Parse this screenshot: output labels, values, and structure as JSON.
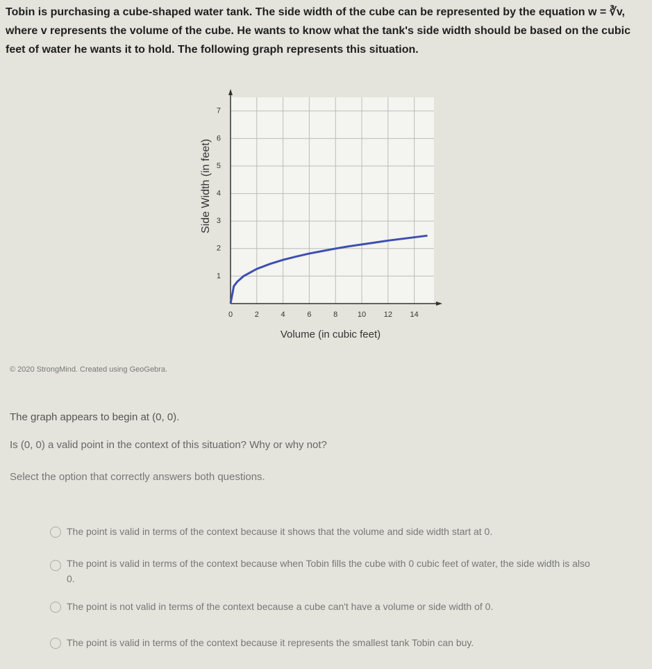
{
  "question": "Tobin is purchasing a cube-shaped water tank. The side width of the cube can be represented by the equation w = ∛v, where v represents the volume of the cube. He wants to know what the tank's side width should be based on the cubic feet of water he wants it to hold. The following graph represents this situation.",
  "chart_data": {
    "type": "line",
    "x_label": "Volume (in cubic feet)",
    "y_label": "Side Width (in feet)",
    "x": [
      0,
      0.25,
      0.5,
      1,
      2,
      3,
      4,
      5,
      6,
      7,
      8,
      9,
      10,
      11,
      12,
      13,
      14,
      15
    ],
    "values": [
      0,
      0.63,
      0.79,
      1,
      1.26,
      1.44,
      1.59,
      1.71,
      1.82,
      1.91,
      2,
      2.08,
      2.15,
      2.22,
      2.29,
      2.35,
      2.41,
      2.47
    ],
    "color": "#3d4fb0",
    "xlim": [
      0,
      15.5
    ],
    "ylim": [
      0,
      7.5
    ],
    "xticks": [
      0,
      2,
      4,
      6,
      8,
      10,
      12,
      14
    ],
    "yticks": [
      1,
      2,
      3,
      4,
      5,
      6,
      7
    ],
    "grid": true
  },
  "credit": "© 2020 StrongMind. Created using GeoGebra.",
  "statement": "The graph appears to begin at (0, 0).",
  "prompt": "Is (0, 0) a valid point in the context of this situation? Why or why not?",
  "instruction": "Select the option that correctly answers both questions.",
  "options": [
    "The point is valid in terms of the context because it shows that the volume and side width start at 0.",
    "The point is valid in terms of the context because when Tobin fills the cube with 0 cubic feet of water, the side width is also 0.",
    "The point is not valid in terms of the context because a cube can't have a volume or side width of 0.",
    "The point is valid in terms of the context because it represents the smallest tank Tobin can buy."
  ]
}
